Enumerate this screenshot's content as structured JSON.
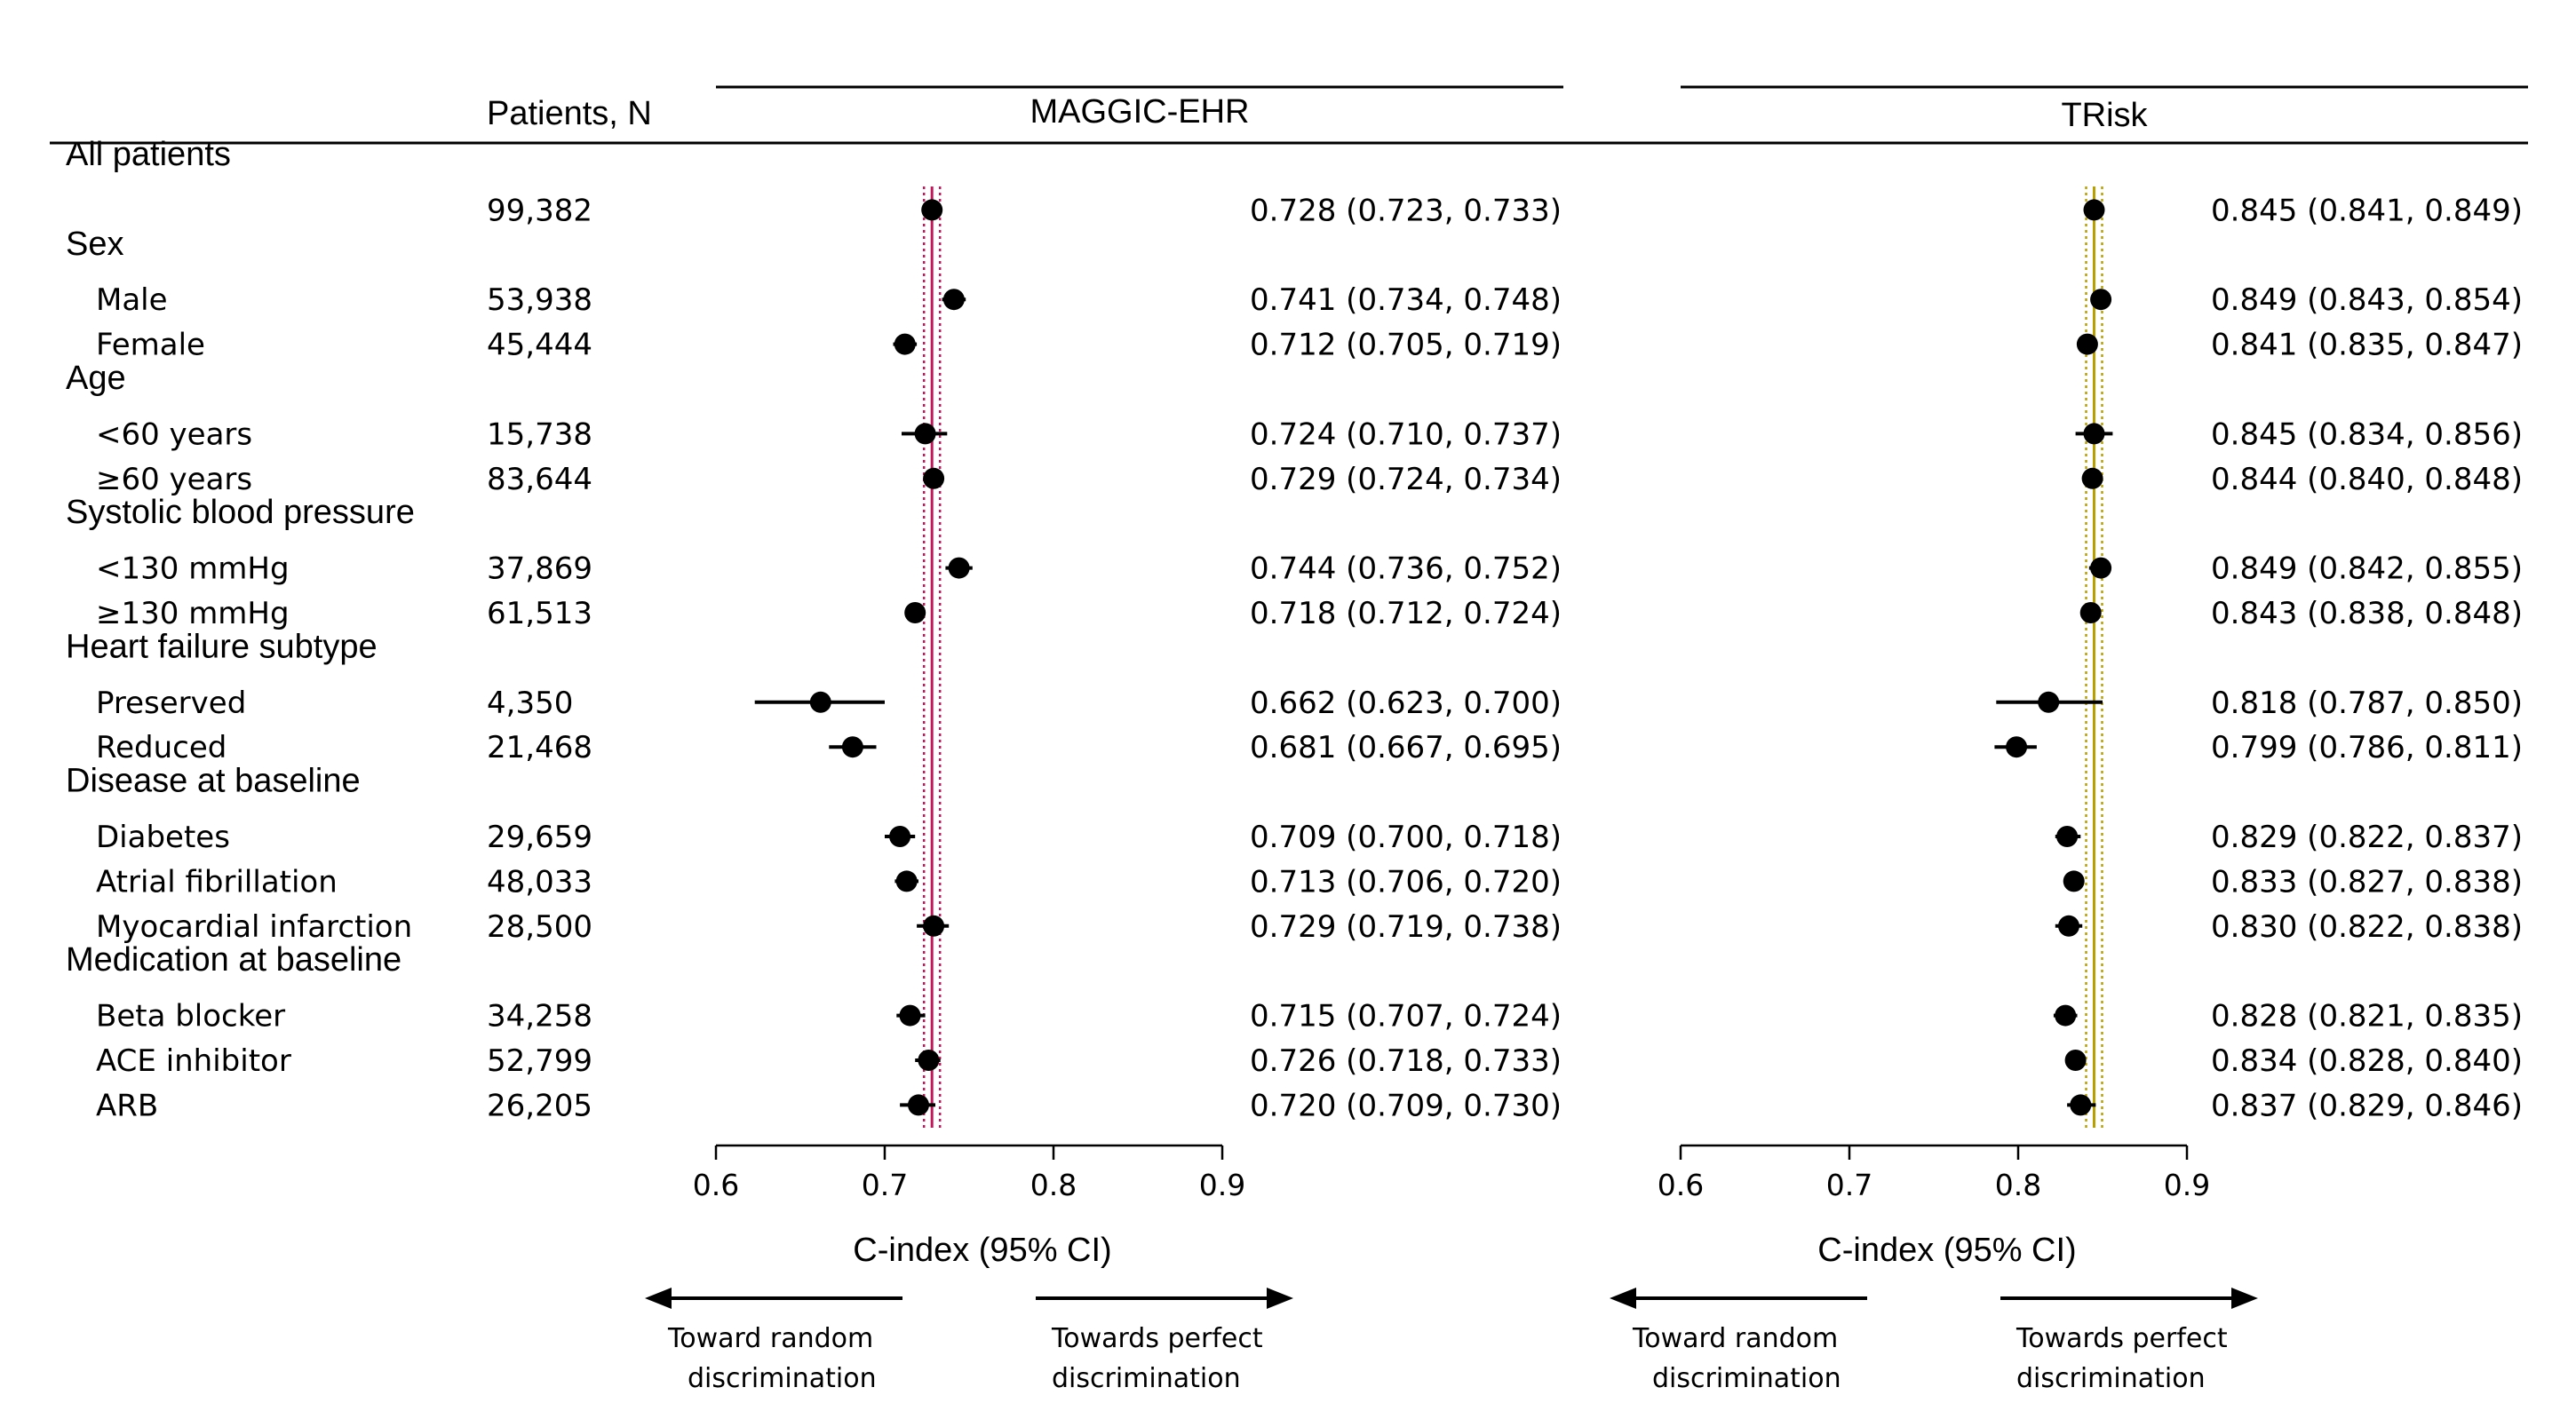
{
  "chart_data": {
    "type": "forest",
    "columns": {
      "patients": "Patients, N"
    },
    "xlabel": "C-index (95% CI)",
    "xlim": [
      0.6,
      0.9
    ],
    "xticks": [
      "0.6",
      "0.7",
      "0.8",
      "0.9"
    ],
    "direction_labels": {
      "left_line1": "Toward random",
      "left_line2": "discrimination",
      "right_line1": "Towards perfect",
      "right_line2": "discrimination"
    },
    "panels": [
      {
        "name": "MAGGIC-EHR",
        "reference": 0.728,
        "band_color": "#c2185b",
        "points": [
          {
            "est": 0.728,
            "lo": 0.723,
            "hi": 0.733,
            "label": "0.728 (0.723, 0.733)"
          },
          {
            "est": 0.741,
            "lo": 0.734,
            "hi": 0.748,
            "label": "0.741 (0.734, 0.748)"
          },
          {
            "est": 0.712,
            "lo": 0.705,
            "hi": 0.719,
            "label": "0.712 (0.705, 0.719)"
          },
          {
            "est": 0.724,
            "lo": 0.71,
            "hi": 0.737,
            "label": "0.724 (0.710, 0.737)"
          },
          {
            "est": 0.729,
            "lo": 0.724,
            "hi": 0.734,
            "label": "0.729 (0.724, 0.734)"
          },
          {
            "est": 0.744,
            "lo": 0.736,
            "hi": 0.752,
            "label": "0.744 (0.736, 0.752)"
          },
          {
            "est": 0.718,
            "lo": 0.712,
            "hi": 0.724,
            "label": "0.718 (0.712, 0.724)"
          },
          {
            "est": 0.662,
            "lo": 0.623,
            "hi": 0.7,
            "label": "0.662 (0.623, 0.700)"
          },
          {
            "est": 0.681,
            "lo": 0.667,
            "hi": 0.695,
            "label": "0.681 (0.667, 0.695)"
          },
          {
            "est": 0.709,
            "lo": 0.7,
            "hi": 0.718,
            "label": "0.709 (0.700, 0.718)"
          },
          {
            "est": 0.713,
            "lo": 0.706,
            "hi": 0.72,
            "label": "0.713 (0.706, 0.720)"
          },
          {
            "est": 0.729,
            "lo": 0.719,
            "hi": 0.738,
            "label": "0.729 (0.719, 0.738)"
          },
          {
            "est": 0.715,
            "lo": 0.707,
            "hi": 0.724,
            "label": "0.715 (0.707, 0.724)"
          },
          {
            "est": 0.726,
            "lo": 0.718,
            "hi": 0.733,
            "label": "0.726 (0.718, 0.733)"
          },
          {
            "est": 0.72,
            "lo": 0.709,
            "hi": 0.73,
            "label": "0.720 (0.709, 0.730)"
          }
        ]
      },
      {
        "name": "TRisk",
        "reference": 0.845,
        "band_color": "#b8a000",
        "points": [
          {
            "est": 0.845,
            "lo": 0.841,
            "hi": 0.849,
            "label": "0.845 (0.841, 0.849)"
          },
          {
            "est": 0.849,
            "lo": 0.843,
            "hi": 0.854,
            "label": "0.849 (0.843, 0.854)"
          },
          {
            "est": 0.841,
            "lo": 0.835,
            "hi": 0.847,
            "label": "0.841 (0.835, 0.847)"
          },
          {
            "est": 0.845,
            "lo": 0.834,
            "hi": 0.856,
            "label": "0.845 (0.834, 0.856)"
          },
          {
            "est": 0.844,
            "lo": 0.84,
            "hi": 0.848,
            "label": "0.844 (0.840, 0.848)"
          },
          {
            "est": 0.849,
            "lo": 0.842,
            "hi": 0.855,
            "label": "0.849 (0.842, 0.855)"
          },
          {
            "est": 0.843,
            "lo": 0.838,
            "hi": 0.848,
            "label": "0.843 (0.838, 0.848)"
          },
          {
            "est": 0.818,
            "lo": 0.787,
            "hi": 0.85,
            "label": "0.818 (0.787, 0.850)"
          },
          {
            "est": 0.799,
            "lo": 0.786,
            "hi": 0.811,
            "label": "0.799 (0.786, 0.811)"
          },
          {
            "est": 0.829,
            "lo": 0.822,
            "hi": 0.837,
            "label": "0.829 (0.822, 0.837)"
          },
          {
            "est": 0.833,
            "lo": 0.827,
            "hi": 0.838,
            "label": "0.833 (0.827, 0.838)"
          },
          {
            "est": 0.83,
            "lo": 0.822,
            "hi": 0.838,
            "label": "0.830 (0.822, 0.838)"
          },
          {
            "est": 0.828,
            "lo": 0.821,
            "hi": 0.835,
            "label": "0.828 (0.821, 0.835)"
          },
          {
            "est": 0.834,
            "lo": 0.828,
            "hi": 0.84,
            "label": "0.834 (0.828, 0.840)"
          },
          {
            "est": 0.837,
            "lo": 0.829,
            "hi": 0.846,
            "label": "0.837 (0.829, 0.846)"
          }
        ]
      }
    ],
    "groups": [
      {
        "label": "All patients",
        "rows": [
          {
            "label": "",
            "n": "99,382"
          }
        ]
      },
      {
        "label": "Sex",
        "rows": [
          {
            "label": "Male",
            "n": "53,938"
          },
          {
            "label": "Female",
            "n": "45,444"
          }
        ]
      },
      {
        "label": "Age",
        "rows": [
          {
            "label": "<60 years",
            "n": "15,738"
          },
          {
            "label": "≥60 years",
            "n": "83,644"
          }
        ]
      },
      {
        "label": "Systolic blood pressure",
        "rows": [
          {
            "label": "<130 mmHg",
            "n": "37,869"
          },
          {
            "label": "≥130 mmHg",
            "n": "61,513"
          }
        ]
      },
      {
        "label": "Heart failure subtype",
        "rows": [
          {
            "label": "Preserved",
            "n": "4,350"
          },
          {
            "label": "Reduced",
            "n": "21,468"
          }
        ]
      },
      {
        "label": "Disease at baseline",
        "rows": [
          {
            "label": "Diabetes",
            "n": "29,659"
          },
          {
            "label": "Atrial fibrillation",
            "n": "48,033"
          },
          {
            "label": "Myocardial infarction",
            "n": "28,500"
          }
        ]
      },
      {
        "label": "Medication at baseline",
        "rows": [
          {
            "label": "Beta blocker",
            "n": "34,258"
          },
          {
            "label": "ACE inhibitor",
            "n": "52,799"
          },
          {
            "label": "ARB",
            "n": "26,205"
          }
        ]
      }
    ]
  }
}
